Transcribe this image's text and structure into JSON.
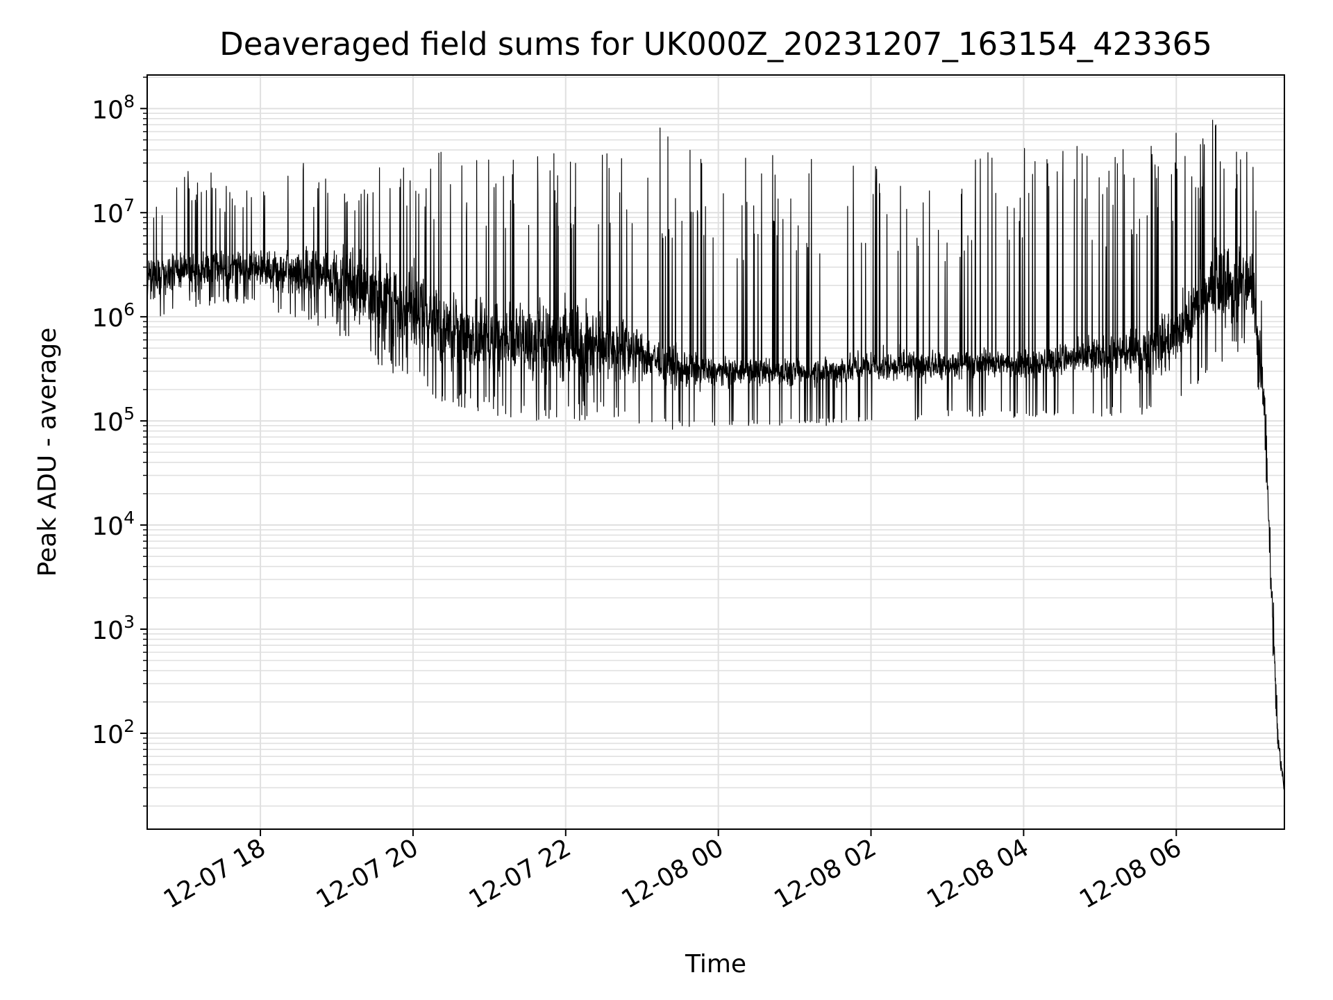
{
  "chart_data": {
    "type": "line",
    "title": "Deaveraged field sums for UK000Z_20231207_163154_423365",
    "xlabel": "Time",
    "ylabel": "Peak ADU - average",
    "y_scale": "log",
    "ylim": [
      12,
      210000000
    ],
    "xlim": [
      "2023-12-07 16:31",
      "2023-12-08 07:25"
    ],
    "grid": true,
    "line_color": "#000000",
    "grid_color": "#e0e0e0",
    "x_ticks": [
      {
        "t": "2023-12-07 18:00",
        "label": "12-07 18"
      },
      {
        "t": "2023-12-07 20:00",
        "label": "12-07 20"
      },
      {
        "t": "2023-12-07 22:00",
        "label": "12-07 22"
      },
      {
        "t": "2023-12-08 00:00",
        "label": "12-08 00"
      },
      {
        "t": "2023-12-08 02:00",
        "label": "12-08 02"
      },
      {
        "t": "2023-12-08 04:00",
        "label": "12-08 04"
      },
      {
        "t": "2023-12-08 06:00",
        "label": "12-08 06"
      }
    ],
    "y_ticks": [
      {
        "value": 100,
        "base": "10",
        "exp": "2"
      },
      {
        "value": 1000,
        "base": "10",
        "exp": "3"
      },
      {
        "value": 10000,
        "base": "10",
        "exp": "4"
      },
      {
        "value": 100000,
        "base": "10",
        "exp": "5"
      },
      {
        "value": 1000000,
        "base": "10",
        "exp": "6"
      },
      {
        "value": 10000000,
        "base": "10",
        "exp": "7"
      },
      {
        "value": 100000000,
        "base": "10",
        "exp": "8"
      }
    ],
    "series": [
      {
        "x": [
          "2023-12-07 16:31",
          "2023-12-07 17:00",
          "2023-12-07 17:30",
          "2023-12-07 18:00",
          "2023-12-07 18:30",
          "2023-12-07 19:00",
          "2023-12-07 19:30",
          "2023-12-07 20:00",
          "2023-12-07 20:30",
          "2023-12-07 21:00",
          "2023-12-07 21:30",
          "2023-12-07 22:00",
          "2023-12-07 22:30",
          "2023-12-07 23:00",
          "2023-12-07 23:30",
          "2023-12-08 00:00",
          "2023-12-08 00:30",
          "2023-12-08 01:00",
          "2023-12-08 01:30",
          "2023-12-08 02:00",
          "2023-12-08 02:30",
          "2023-12-08 03:00",
          "2023-12-08 03:30",
          "2023-12-08 04:00",
          "2023-12-08 04:30",
          "2023-12-08 05:00",
          "2023-12-08 05:30",
          "2023-12-08 06:00",
          "2023-12-08 06:30",
          "2023-12-08 07:00",
          "2023-12-08 07:10",
          "2023-12-08 07:15",
          "2023-12-08 07:20",
          "2023-12-08 07:25"
        ],
        "lo": [
          900000,
          1200000,
          1300000,
          1300000,
          900000,
          700000,
          350000,
          200000,
          130000,
          110000,
          100000,
          100000,
          100000,
          90000,
          80000,
          90000,
          90000,
          90000,
          90000,
          95000,
          100000,
          110000,
          110000,
          105000,
          110000,
          110000,
          110000,
          120000,
          350000,
          400000,
          40000,
          800,
          60,
          25
        ],
        "mid": [
          2500000,
          3000000,
          3000000,
          3000000,
          3000000,
          2800000,
          2500000,
          1500000,
          900000,
          700000,
          650000,
          650000,
          600000,
          300000,
          200000,
          170000,
          170000,
          170000,
          180000,
          200000,
          210000,
          220000,
          210000,
          200000,
          230000,
          280000,
          330000,
          600000,
          3000000,
          3000000,
          150000,
          3000,
          100,
          30
        ],
        "hi": [
          20000000,
          25000000,
          25000000,
          25000000,
          30000000,
          32000000,
          28000000,
          40000000,
          45000000,
          40000000,
          40000000,
          45000000,
          45000000,
          95000000,
          45000000,
          40000000,
          40000000,
          35000000,
          35000000,
          40000000,
          40000000,
          30000000,
          40000000,
          50000000,
          55000000,
          45000000,
          40000000,
          60000000,
          80000000,
          40000000,
          1000000,
          10000,
          100,
          30
        ]
      }
    ]
  }
}
